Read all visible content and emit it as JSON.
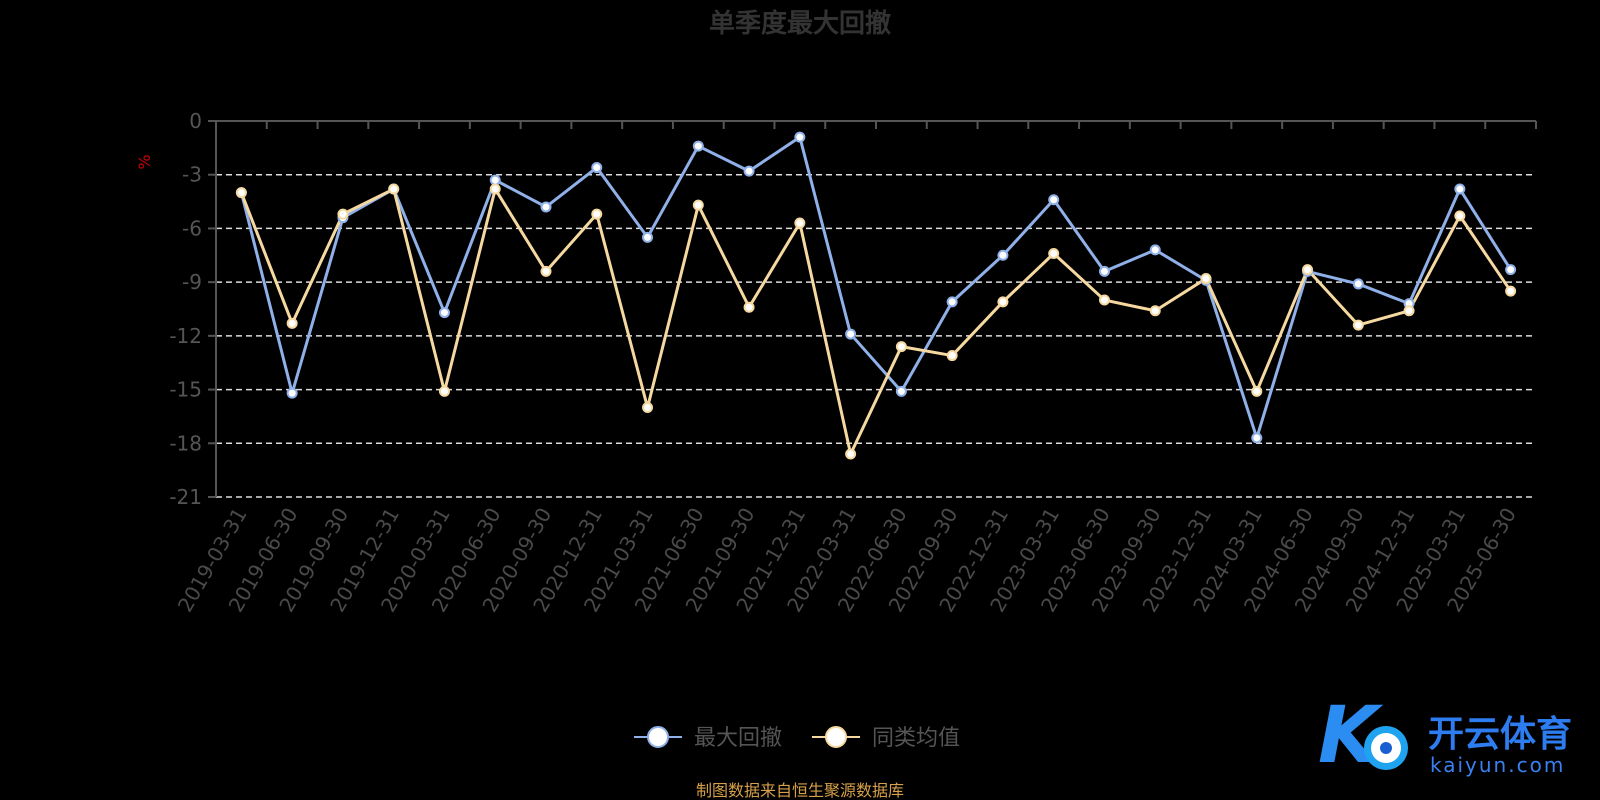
{
  "chart_data": {
    "type": "line",
    "title": "单季度最大回撤",
    "ylabel": "%",
    "ylim": [
      -21,
      0
    ],
    "yticks": [
      0,
      -3,
      -6,
      -9,
      -12,
      -15,
      -18,
      -21
    ],
    "grid": "dashed horizontal",
    "legend_position": "bottom-center",
    "categories": [
      "2019-03-31",
      "2019-06-30",
      "2019-09-30",
      "2019-12-31",
      "2020-03-31",
      "2020-06-30",
      "2020-09-30",
      "2020-12-31",
      "2021-03-31",
      "2021-06-30",
      "2021-09-30",
      "2021-12-31",
      "2022-03-31",
      "2022-06-30",
      "2022-09-30",
      "2022-12-31",
      "2023-03-31",
      "2023-06-30",
      "2023-09-30",
      "2023-12-31",
      "2024-03-31",
      "2024-06-30",
      "2024-09-30",
      "2024-12-31",
      "2025-03-31",
      "2025-06-30"
    ],
    "series": [
      {
        "name": "最大回撤",
        "color": "#8fb0e8",
        "values": [
          -4.0,
          -15.2,
          -5.4,
          -3.8,
          -10.7,
          -3.3,
          -4.8,
          -2.6,
          -6.5,
          -1.4,
          -2.8,
          -0.9,
          -11.9,
          -15.1,
          -10.1,
          -7.5,
          -4.4,
          -8.4,
          -7.2,
          -8.9,
          -17.7,
          -8.4,
          -9.1,
          -10.2,
          -3.8,
          -8.3
        ]
      },
      {
        "name": "同类均值",
        "color": "#f6d9a0",
        "values": [
          -4.0,
          -11.3,
          -5.2,
          -3.8,
          -15.1,
          -3.8,
          -8.4,
          -5.2,
          -16.0,
          -4.7,
          -10.4,
          -5.7,
          -18.6,
          -12.6,
          -13.1,
          -10.1,
          -7.4,
          -10.0,
          -10.6,
          -8.8,
          -15.1,
          -8.3,
          -11.4,
          -10.6,
          -5.3,
          -9.5
        ]
      }
    ]
  },
  "source_note": "制图数据来自恒生聚源数据库",
  "logo": {
    "name": "开云体育",
    "url_text": "kaiyun.com",
    "mark": "K"
  }
}
